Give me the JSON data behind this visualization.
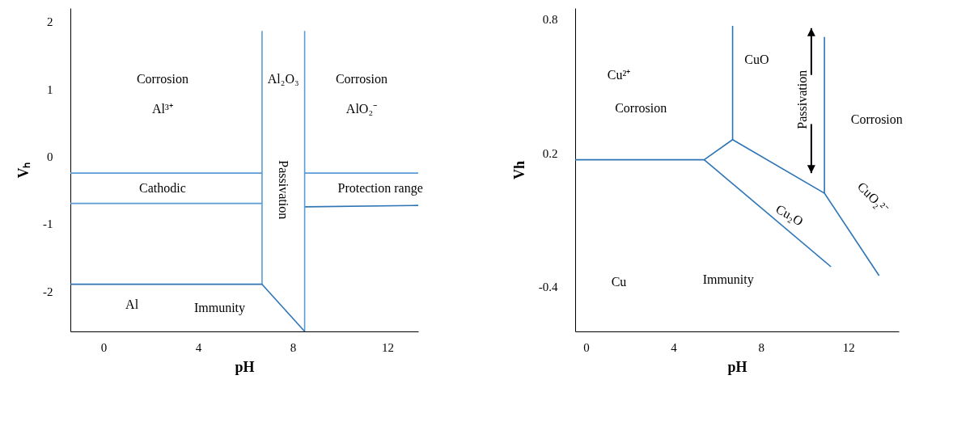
{
  "chart_data": [
    {
      "type": "line",
      "xlabel": "pH",
      "ylabel": "Vₕ",
      "xlim": [
        -1.4,
        13.3
      ],
      "ylim": [
        -2.6,
        2.2
      ],
      "xticks": [
        0,
        4,
        8,
        12
      ],
      "yticks": [
        2,
        1,
        0,
        -1,
        -2
      ],
      "grid": false,
      "series": [
        {
          "color": "#5b9bd5",
          "x": [
            -1.4,
            6.7
          ],
          "values": [
            -0.25,
            -0.25
          ]
        },
        {
          "color": "#5b9bd5",
          "x": [
            -1.4,
            6.7
          ],
          "values": [
            -0.7,
            -0.7
          ]
        },
        {
          "color": "#5b9bd5",
          "x": [
            8.5,
            13.3
          ],
          "values": [
            -0.25,
            -0.25
          ]
        },
        {
          "color": "#2e75b6",
          "x": [
            8.5,
            13.3
          ],
          "values": [
            -0.75,
            -0.73
          ]
        },
        {
          "color": "#5b9bd5",
          "x": [
            6.7,
            6.7
          ],
          "values": [
            1.86,
            -1.9
          ]
        },
        {
          "color": "#5b9bd5",
          "x": [
            8.5,
            8.5
          ],
          "values": [
            1.86,
            -2.6
          ]
        },
        {
          "color": "#2e75b6",
          "x": [
            -1.4,
            6.7,
            8.5
          ],
          "values": [
            -1.9,
            -1.9,
            -2.6
          ]
        }
      ],
      "annotations": [
        "Corrosion",
        "Al³⁺",
        "Al₂O₃",
        "Corrosion",
        "AlO₂⁻",
        "Cathodic",
        "Passivation",
        "Protection range",
        "Al",
        "Immunity"
      ]
    },
    {
      "type": "line",
      "xlabel": "pH",
      "ylabel": "Vh",
      "xlim": [
        -0.5,
        14.3
      ],
      "ylim": [
        -0.6,
        0.85
      ],
      "xticks": [
        0,
        4,
        8,
        12
      ],
      "yticks": [
        0.8,
        0.2,
        -0.4
      ],
      "grid": false,
      "series": [
        {
          "color": "#2e75b6",
          "x": [
            -0.5,
            5.4,
            6.7,
            6.7
          ],
          "values": [
            0.17,
            0.17,
            0.26,
            0.77
          ]
        },
        {
          "color": "#2e75b6",
          "x": [
            5.4,
            11.2
          ],
          "values": [
            0.17,
            -0.31
          ]
        },
        {
          "color": "#2e75b6",
          "x": [
            6.7,
            10.9,
            10.9
          ],
          "values": [
            0.26,
            0.02,
            0.72
          ]
        },
        {
          "color": "#2e75b6",
          "x": [
            10.9,
            13.4
          ],
          "values": [
            0.02,
            -0.35
          ]
        }
      ],
      "annotations": [
        "Cu²⁺",
        "Corrosion",
        "CuO",
        "Passivation",
        "Corrosion",
        "Cu₂O",
        "CuO₂²⁻",
        "Cu",
        "Immunity"
      ]
    }
  ]
}
